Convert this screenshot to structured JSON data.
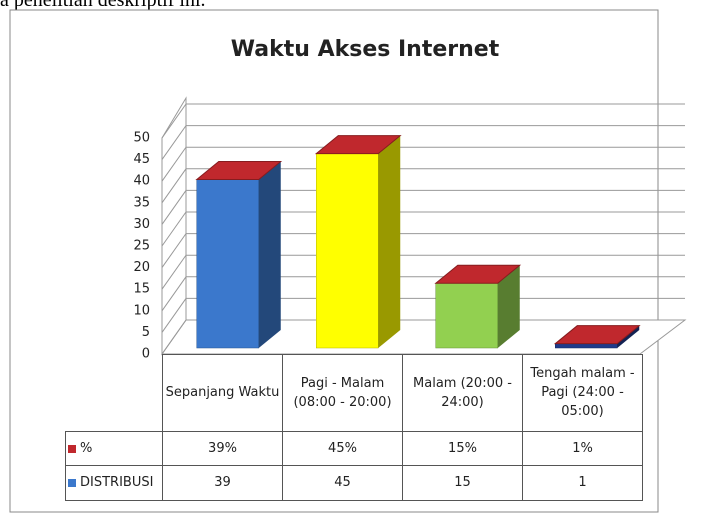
{
  "caption": "a penelitian deskriptif ini.",
  "chart_data": {
    "type": "bar3d",
    "title": "Waktu Akses Internet",
    "categories": [
      "Sepanjang Waktu",
      "Pagi - Malam (08:00 - 20:00)",
      "Malam (20:00 - 24:00)",
      "Tengah malam - Pagi (24:00 - 05:00)"
    ],
    "colors": [
      "#3b78cc",
      "#ffff00",
      "#92d050",
      "#1f3a8a"
    ],
    "series": [
      {
        "name": "%",
        "color": "#c0282d",
        "values": [
          39,
          45,
          15,
          1
        ],
        "value_labels": [
          "39%",
          "45%",
          "15%",
          "1%"
        ]
      },
      {
        "name": "DISTRIBUSI",
        "color": "#3b78cc",
        "values": [
          39,
          45,
          15,
          1
        ]
      }
    ],
    "ylim": [
      0,
      50
    ],
    "yticks": [
      0,
      5,
      10,
      15,
      20,
      25,
      30,
      35,
      40,
      45,
      50
    ],
    "grid": true
  }
}
